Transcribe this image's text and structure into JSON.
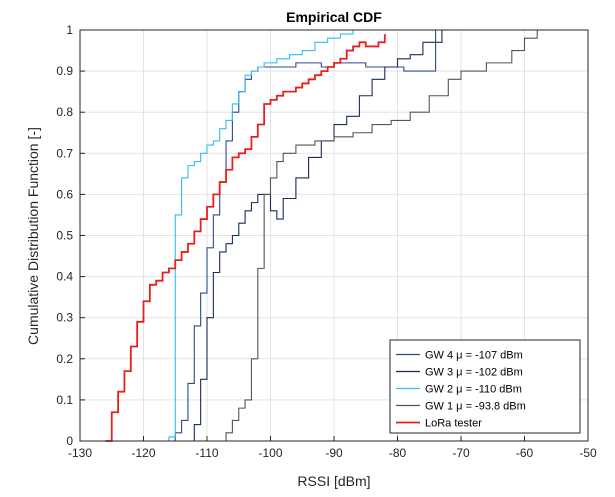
{
  "chart_data": {
    "type": "line",
    "title": "Empirical CDF",
    "xlabel": "RSSI [dBm]",
    "ylabel": "Cumulative Distribution Function [-]",
    "xlim": [
      -130,
      -50
    ],
    "ylim": [
      0,
      1
    ],
    "xticks": [
      "-130",
      "-120",
      "-110",
      "-100",
      "-90",
      "-80",
      "-70",
      "-60",
      "-50"
    ],
    "yticks": [
      "0",
      "0.1",
      "0.2",
      "0.3",
      "0.4",
      "0.5",
      "0.6",
      "0.7",
      "0.8",
      "0.9",
      "1"
    ],
    "grid": true,
    "legend_position": "bottom-right",
    "series": [
      {
        "name": "GW 4 μ = -107 dBm",
        "color": "#2e4a8c",
        "x": [
          -116,
          -115,
          -114,
          -113,
          -112,
          -111,
          -110,
          -109,
          -108,
          -107,
          -106,
          -105,
          -104,
          -103,
          -102,
          -101,
          -100,
          -98,
          -96,
          -94,
          -92,
          -90,
          -88,
          -85,
          -82,
          -79,
          -76,
          -74
        ],
        "y": [
          0,
          0.02,
          0.05,
          0.14,
          0.28,
          0.36,
          0.47,
          0.55,
          0.63,
          0.73,
          0.8,
          0.85,
          0.88,
          0.9,
          0.91,
          0.91,
          0.91,
          0.91,
          0.92,
          0.92,
          0.91,
          0.92,
          0.92,
          0.91,
          0.91,
          0.9,
          0.9,
          1.0
        ]
      },
      {
        "name": "GW 3 μ = -102 dBm",
        "color": "#1a2b5e",
        "x": [
          -113,
          -112,
          -111,
          -110,
          -109,
          -108,
          -107,
          -106,
          -105,
          -104,
          -103,
          -102,
          -101,
          -100,
          -99,
          -98,
          -96,
          -94,
          -92,
          -90,
          -88,
          -86,
          -84,
          -82,
          -80,
          -78,
          -76,
          -73
        ],
        "y": [
          0,
          0.04,
          0.15,
          0.3,
          0.41,
          0.46,
          0.48,
          0.5,
          0.53,
          0.56,
          0.58,
          0.6,
          0.6,
          0.56,
          0.54,
          0.59,
          0.64,
          0.69,
          0.73,
          0.77,
          0.79,
          0.84,
          0.88,
          0.91,
          0.93,
          0.94,
          0.97,
          1.0
        ]
      },
      {
        "name": "GW 2 μ = -110 dBm",
        "color": "#33bde8",
        "x": [
          -120,
          -117,
          -116,
          -115,
          -114,
          -113,
          -112,
          -111,
          -110,
          -109,
          -108,
          -107,
          -106,
          -105,
          -104,
          -103,
          -102,
          -101,
          -99,
          -97,
          -95,
          -93,
          -91,
          -89,
          -87
        ],
        "y": [
          0,
          0.0,
          0.01,
          0.55,
          0.64,
          0.67,
          0.68,
          0.7,
          0.72,
          0.73,
          0.76,
          0.78,
          0.82,
          0.85,
          0.89,
          0.9,
          0.91,
          0.92,
          0.93,
          0.94,
          0.95,
          0.97,
          0.98,
          0.99,
          1.0
        ]
      },
      {
        "name": "GW 1 μ = -93.8 dBm",
        "color": "#555555",
        "x": [
          -109,
          -107,
          -106,
          -105,
          -104,
          -103,
          -102,
          -101,
          -100,
          -99,
          -98,
          -96,
          -93,
          -90,
          -87,
          -84,
          -81,
          -78,
          -75,
          -72,
          -70,
          -66,
          -62,
          -60,
          -58
        ],
        "y": [
          0,
          0.02,
          0.05,
          0.08,
          0.1,
          0.2,
          0.42,
          0.6,
          0.64,
          0.68,
          0.7,
          0.72,
          0.73,
          0.74,
          0.75,
          0.77,
          0.78,
          0.8,
          0.84,
          0.88,
          0.9,
          0.92,
          0.95,
          0.98,
          1.0
        ]
      },
      {
        "name": "LoRa tester",
        "color": "#e8201c",
        "x": [
          -126,
          -125,
          -124,
          -123,
          -122,
          -121,
          -120,
          -119,
          -118,
          -117,
          -116,
          -115,
          -114,
          -113,
          -112,
          -111,
          -110,
          -109,
          -108,
          -107,
          -106,
          -105,
          -104,
          -103,
          -102,
          -101,
          -100,
          -99,
          -98,
          -97,
          -96,
          -95,
          -94,
          -93,
          -92,
          -91,
          -90,
          -89,
          -88,
          -87,
          -86,
          -85,
          -84,
          -83,
          -82
        ],
        "y": [
          0,
          0.07,
          0.12,
          0.17,
          0.23,
          0.29,
          0.34,
          0.38,
          0.39,
          0.41,
          0.42,
          0.44,
          0.46,
          0.48,
          0.51,
          0.54,
          0.57,
          0.6,
          0.63,
          0.66,
          0.69,
          0.7,
          0.71,
          0.74,
          0.77,
          0.82,
          0.83,
          0.84,
          0.85,
          0.85,
          0.86,
          0.87,
          0.88,
          0.89,
          0.9,
          0.91,
          0.92,
          0.93,
          0.95,
          0.96,
          0.97,
          0.96,
          0.96,
          0.97,
          0.99
        ]
      }
    ]
  }
}
